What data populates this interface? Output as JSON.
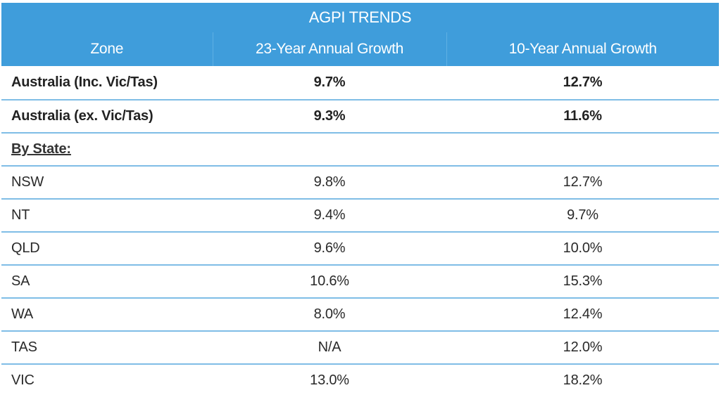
{
  "chart_data": {
    "type": "table",
    "title": "AGPI TRENDS",
    "columns": [
      "Zone",
      "23-Year Annual Growth",
      "10-Year Annual Growth"
    ],
    "rows": [
      {
        "zone": "Australia (Inc. Vic/Tas)",
        "growth_23yr": "9.7%",
        "growth_10yr": "12.7%"
      },
      {
        "zone": "Australia (ex. Vic/Tas)",
        "growth_23yr": "9.3%",
        "growth_10yr": "11.6%"
      },
      {
        "zone": "By State:",
        "growth_23yr": "",
        "growth_10yr": ""
      },
      {
        "zone": "NSW",
        "growth_23yr": "9.8%",
        "growth_10yr": "12.7%"
      },
      {
        "zone": "NT",
        "growth_23yr": "9.4%",
        "growth_10yr": "9.7%"
      },
      {
        "zone": "QLD",
        "growth_23yr": "9.6%",
        "growth_10yr": "10.0%"
      },
      {
        "zone": "SA",
        "growth_23yr": "10.6%",
        "growth_10yr": "15.3%"
      },
      {
        "zone": "WA",
        "growth_23yr": "8.0%",
        "growth_10yr": "12.4%"
      },
      {
        "zone": "TAS",
        "growth_23yr": "N/A",
        "growth_10yr": "12.0%"
      },
      {
        "zone": "VIC",
        "growth_23yr": "13.0%",
        "growth_10yr": "18.2%"
      }
    ]
  },
  "colors": {
    "header_bg": "#3f9ddb",
    "header_text": "#ffffff",
    "row_divider": "#7fbde6"
  }
}
